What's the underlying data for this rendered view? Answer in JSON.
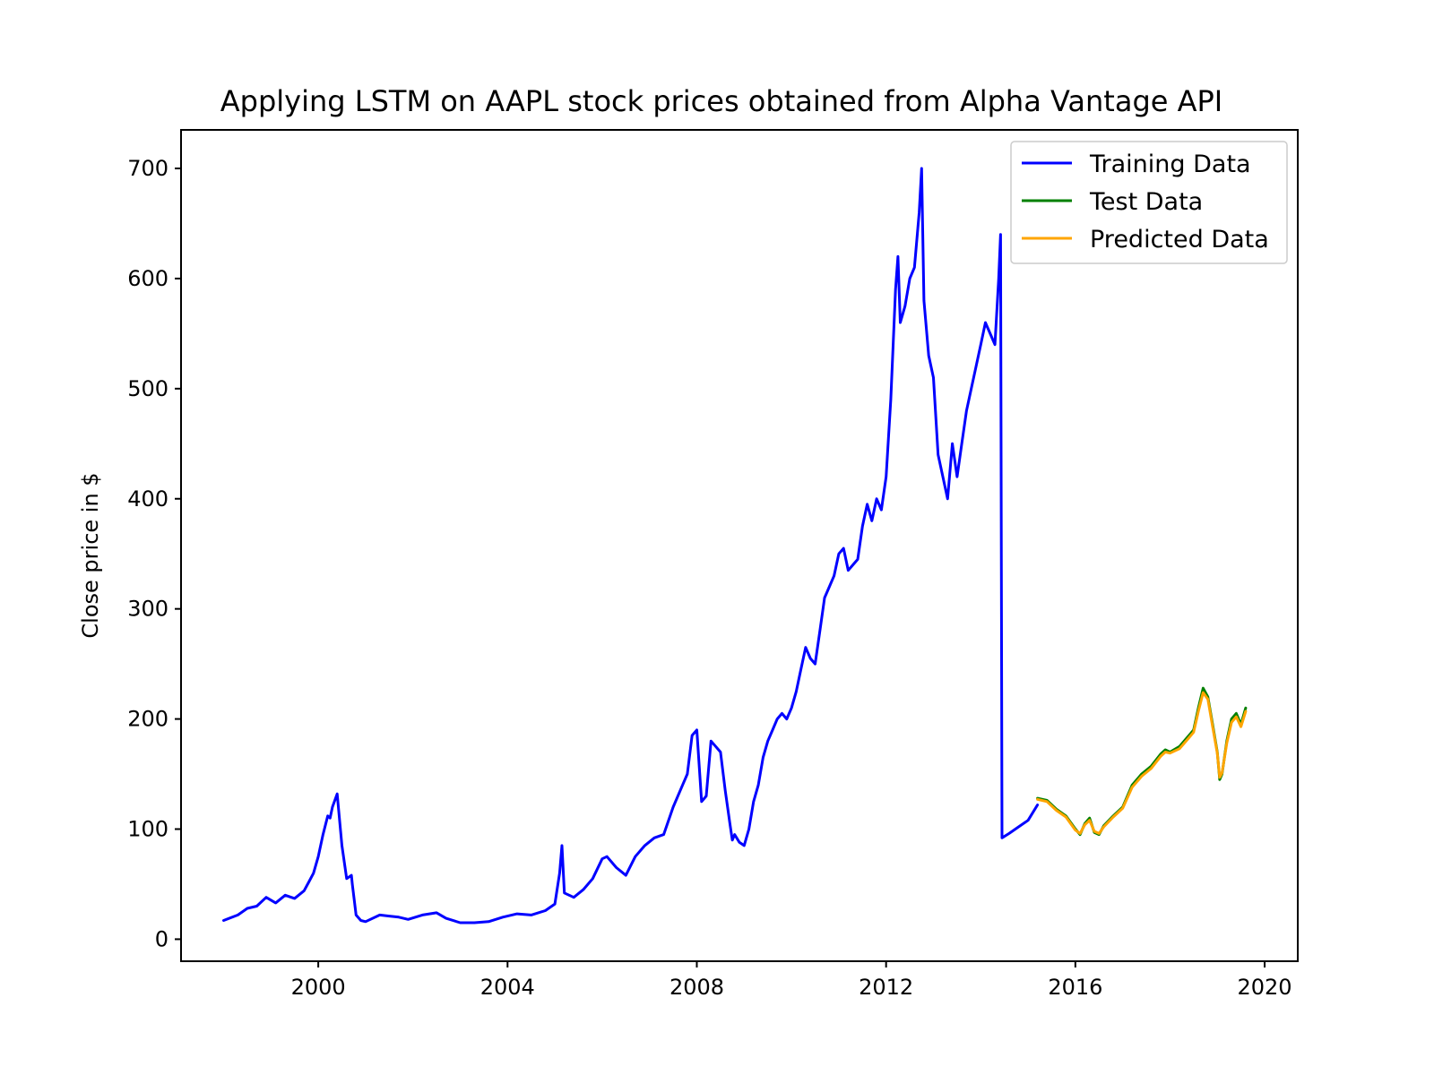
{
  "chart_data": {
    "type": "line",
    "title": "Applying LSTM on AAPL stock prices obtained from Alpha Vantage API",
    "xlabel": "",
    "ylabel": "Close price in $",
    "xlim": [
      1997.1,
      2020.7
    ],
    "ylim": [
      -20,
      735
    ],
    "x_ticks": [
      2000,
      2004,
      2008,
      2012,
      2016,
      2020
    ],
    "x_tick_labels": [
      "2000",
      "2004",
      "2008",
      "2012",
      "2016",
      "2020"
    ],
    "y_ticks": [
      0,
      100,
      200,
      300,
      400,
      500,
      600,
      700
    ],
    "y_tick_labels": [
      "0",
      "100",
      "200",
      "300",
      "400",
      "500",
      "600",
      "700"
    ],
    "grid": false,
    "legend_position": "top-right",
    "series": [
      {
        "name": "Training Data",
        "color": "#0000ff",
        "x": [
          1998.0,
          1998.3,
          1998.5,
          1998.7,
          1998.9,
          1999.1,
          1999.3,
          1999.5,
          1999.7,
          1999.8,
          1999.9,
          2000.0,
          2000.1,
          2000.2,
          2000.25,
          2000.3,
          2000.4,
          2000.5,
          2000.6,
          2000.7,
          2000.72,
          2000.8,
          2000.9,
          2001.0,
          2001.3,
          2001.5,
          2001.7,
          2001.9,
          2002.2,
          2002.5,
          2002.7,
          2003.0,
          2003.3,
          2003.6,
          2003.9,
          2004.2,
          2004.5,
          2004.8,
          2005.0,
          2005.1,
          2005.15,
          2005.2,
          2005.4,
          2005.6,
          2005.8,
          2006.0,
          2006.1,
          2006.3,
          2006.5,
          2006.7,
          2006.9,
          2007.1,
          2007.3,
          2007.5,
          2007.7,
          2007.8,
          2007.9,
          2008.0,
          2008.1,
          2008.2,
          2008.3,
          2008.4,
          2008.5,
          2008.6,
          2008.7,
          2008.75,
          2008.8,
          2008.9,
          2009.0,
          2009.1,
          2009.2,
          2009.3,
          2009.4,
          2009.5,
          2009.6,
          2009.7,
          2009.8,
          2009.9,
          2010.0,
          2010.1,
          2010.2,
          2010.3,
          2010.4,
          2010.5,
          2010.6,
          2010.7,
          2010.8,
          2010.9,
          2011.0,
          2011.1,
          2011.2,
          2011.3,
          2011.4,
          2011.5,
          2011.6,
          2011.7,
          2011.8,
          2011.9,
          2012.0,
          2012.1,
          2012.2,
          2012.25,
          2012.3,
          2012.4,
          2012.5,
          2012.6,
          2012.7,
          2012.75,
          2012.8,
          2012.9,
          2013.0,
          2013.1,
          2013.2,
          2013.3,
          2013.4,
          2013.5,
          2013.6,
          2013.7,
          2013.8,
          2013.9,
          2014.0,
          2014.1,
          2014.2,
          2014.3,
          2014.38,
          2014.42,
          2014.45,
          2014.6,
          2014.8,
          2015.0,
          2015.2
        ],
        "y": [
          17,
          22,
          28,
          30,
          38,
          33,
          40,
          37,
          44,
          52,
          60,
          75,
          95,
          112,
          110,
          120,
          132,
          85,
          55,
          58,
          50,
          22,
          17,
          16,
          22,
          21,
          20,
          18,
          22,
          24,
          19,
          15,
          15,
          16,
          20,
          23,
          22,
          26,
          32,
          60,
          85,
          42,
          38,
          45,
          55,
          73,
          75,
          65,
          58,
          75,
          85,
          92,
          95,
          120,
          140,
          150,
          185,
          190,
          125,
          130,
          180,
          175,
          170,
          135,
          105,
          90,
          95,
          88,
          85,
          100,
          125,
          140,
          165,
          180,
          190,
          200,
          205,
          200,
          210,
          225,
          245,
          265,
          255,
          250,
          280,
          310,
          320,
          330,
          350,
          355,
          335,
          340,
          345,
          375,
          395,
          380,
          400,
          390,
          420,
          490,
          590,
          620,
          560,
          575,
          600,
          610,
          660,
          700,
          580,
          530,
          510,
          440,
          420,
          400,
          450,
          420,
          450,
          480,
          500,
          520,
          540,
          560,
          550,
          540,
          600,
          640,
          92,
          96,
          102,
          108,
          122
        ]
      },
      {
        "name": "Test Data",
        "color": "#008000",
        "x": [
          2015.2,
          2015.4,
          2015.6,
          2015.8,
          2016.0,
          2016.1,
          2016.2,
          2016.3,
          2016.4,
          2016.5,
          2016.6,
          2016.8,
          2016.9,
          2017.0,
          2017.2,
          2017.4,
          2017.6,
          2017.8,
          2017.9,
          2018.0,
          2018.2,
          2018.4,
          2018.5,
          2018.6,
          2018.7,
          2018.8,
          2018.9,
          2019.0,
          2019.05,
          2019.1,
          2019.2,
          2019.3,
          2019.4,
          2019.5,
          2019.6
        ],
        "y": [
          128,
          126,
          118,
          112,
          100,
          95,
          105,
          110,
          97,
          95,
          103,
          112,
          116,
          120,
          140,
          150,
          157,
          168,
          172,
          170,
          175,
          185,
          190,
          210,
          228,
          220,
          195,
          170,
          145,
          150,
          180,
          200,
          205,
          195,
          210
        ]
      },
      {
        "name": "Predicted Data",
        "color": "#ffa500",
        "x": [
          2015.2,
          2015.4,
          2015.6,
          2015.8,
          2016.0,
          2016.1,
          2016.2,
          2016.3,
          2016.4,
          2016.5,
          2016.6,
          2016.8,
          2016.9,
          2017.0,
          2017.2,
          2017.4,
          2017.6,
          2017.8,
          2017.9,
          2018.0,
          2018.2,
          2018.4,
          2018.5,
          2018.6,
          2018.7,
          2018.8,
          2018.9,
          2019.0,
          2019.05,
          2019.1,
          2019.2,
          2019.3,
          2019.4,
          2019.5,
          2019.6
        ],
        "y": [
          127,
          125,
          117,
          111,
          99,
          96,
          104,
          108,
          98,
          96,
          102,
          111,
          115,
          119,
          138,
          148,
          155,
          166,
          170,
          169,
          173,
          183,
          188,
          207,
          224,
          218,
          193,
          169,
          147,
          151,
          178,
          197,
          202,
          193,
          207
        ]
      }
    ]
  }
}
